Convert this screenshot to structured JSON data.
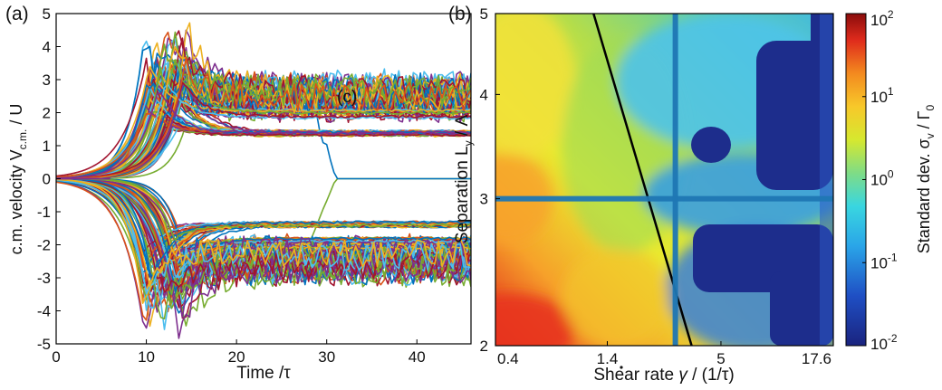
{
  "chart_data": [
    {
      "type": "line",
      "panel_label": "(a)",
      "annotation": "(c)",
      "xlabel": "Time /τ",
      "ylabel_main": "c.m. velocity V",
      "ylabel_sub": "c.m.",
      "ylabel_tail": " / U",
      "xlim": [
        0,
        46
      ],
      "ylim": [
        -5,
        5
      ],
      "xticks": [
        0,
        10,
        20,
        30,
        40
      ],
      "yticks": [
        -5,
        -4,
        -3,
        -2,
        -1,
        0,
        1,
        2,
        3,
        4,
        5
      ],
      "xtick_labels": [
        "0",
        "10",
        "20",
        "30",
        "40"
      ],
      "ytick_labels": [
        "-5",
        "-4",
        "-3",
        "-2",
        "-1",
        "0",
        "1",
        "2",
        "3",
        "4",
        "5"
      ],
      "grid": false,
      "n_series": 180,
      "onset_time": 12,
      "plateau_levels": [
        1.4,
        2.0,
        2.3,
        2.7,
        -1.4,
        -2.0,
        -2.3,
        -2.7
      ],
      "series_colors": [
        "#0072bd",
        "#d95319",
        "#edb120",
        "#7e2f8e",
        "#77ac30",
        "#4dbeee",
        "#a2142f"
      ]
    },
    {
      "type": "heatmap",
      "panel_label": "(b)",
      "xlabel_pre": "Shear rate ",
      "xlabel_sym": "γ",
      "xlabel_post": " / (1/τ)",
      "ylabel_main": "Separation L",
      "ylabel_sub": "y",
      "ylabel_tail": " / Λ",
      "colorbar_label_main": "Standard dev. σ",
      "colorbar_label_sub1": "v",
      "colorbar_label_mid": " / Γ",
      "colorbar_label_sub2": "0",
      "xscale": "log",
      "yscale": "log",
      "xlim": [
        0.4,
        17.6
      ],
      "ylim": [
        2,
        5
      ],
      "xticks": [
        0.4,
        1.4,
        5,
        17.6
      ],
      "xtick_labels": [
        "0.4",
        "1.4",
        "5",
        "17.6"
      ],
      "yticks": [
        2,
        3,
        4,
        5
      ],
      "ytick_labels": [
        "2",
        "3",
        "4",
        "5"
      ],
      "colorbar_scale": "log",
      "colorbar_range": [
        0.01,
        100
      ],
      "colorbar_ticks": [
        {
          "base": "10",
          "exp": "2"
        },
        {
          "base": "10",
          "exp": "1"
        },
        {
          "base": "10",
          "exp": "0"
        },
        {
          "base": "10",
          "exp": "-1"
        },
        {
          "base": "10",
          "exp": "-2"
        }
      ],
      "crosshair": {
        "x": 3.0,
        "y": 3.0,
        "color": "#1f77b4"
      },
      "black_line": {
        "points": [
          [
            1.2,
            5.0
          ],
          [
            3.6,
            2.0
          ]
        ],
        "color": "#000000"
      },
      "low_color": "#1d2d8c"
    }
  ]
}
